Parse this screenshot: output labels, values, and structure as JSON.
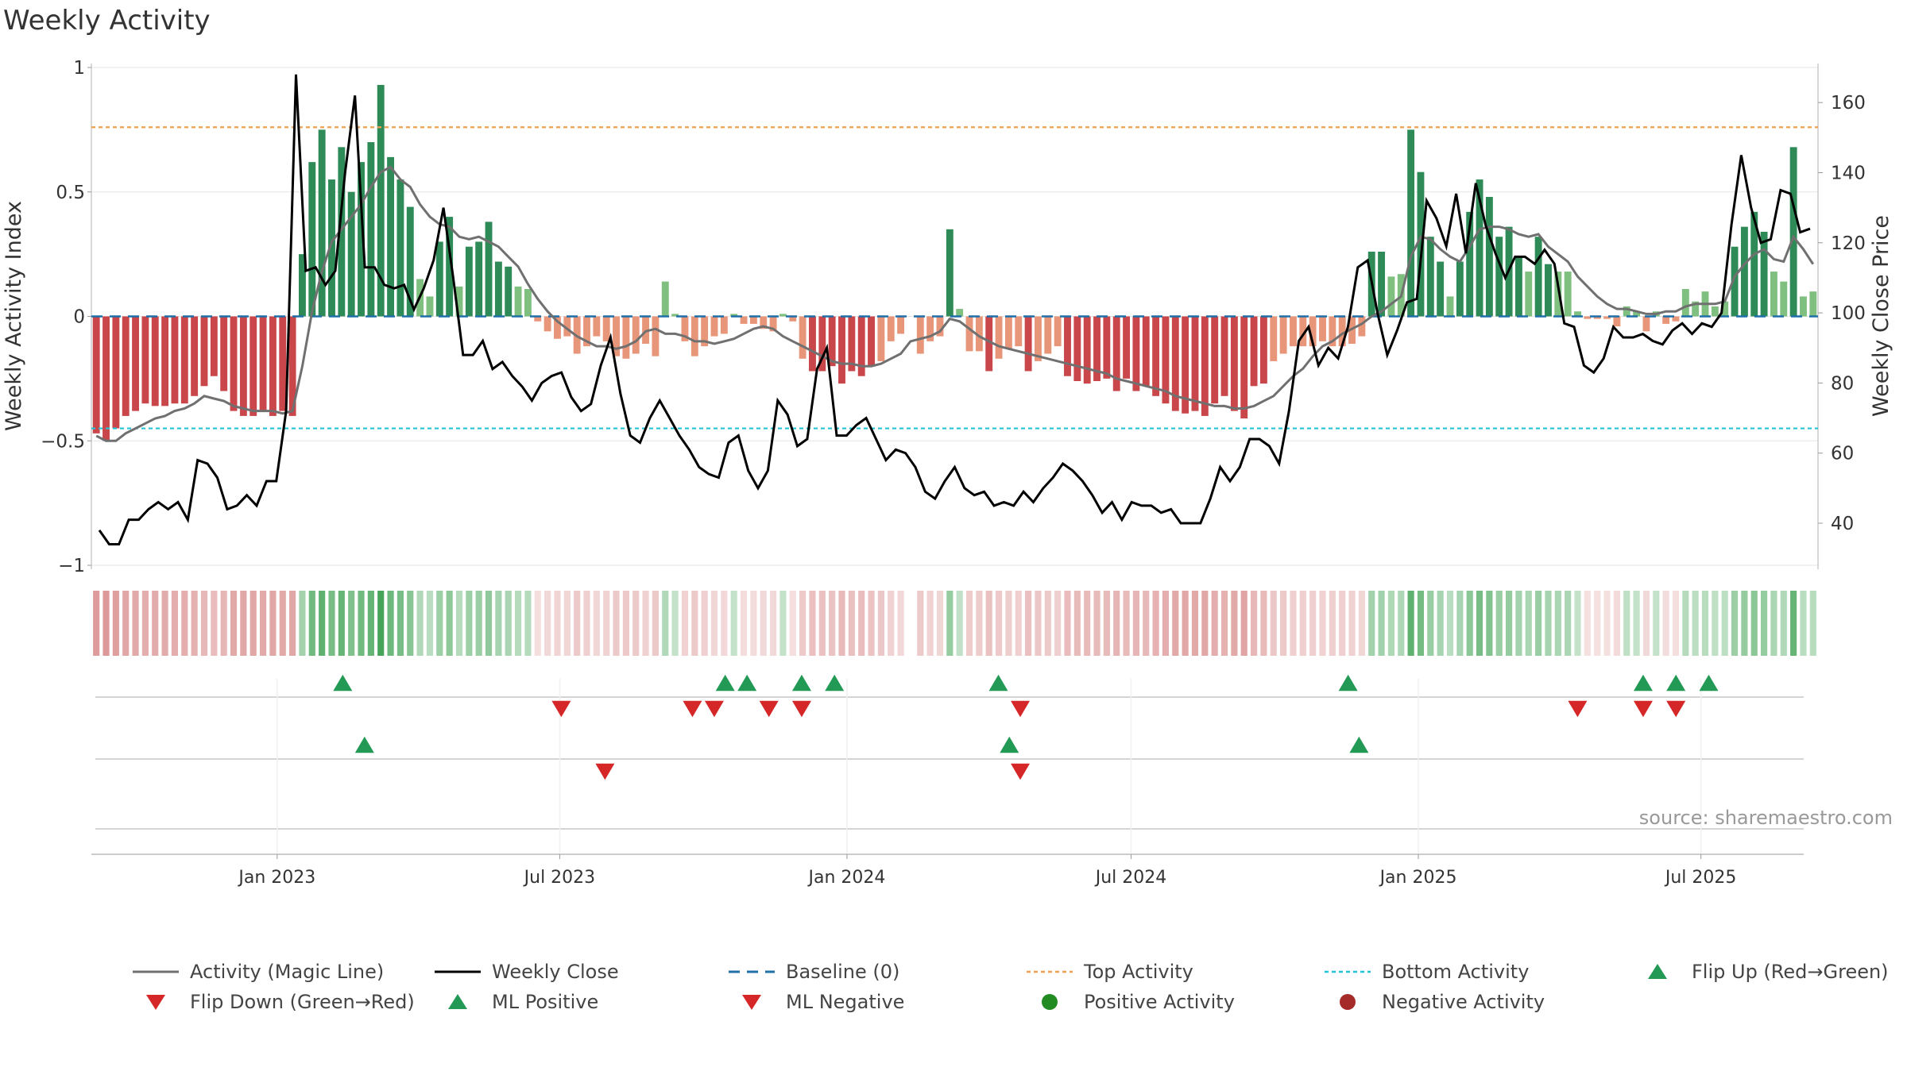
{
  "title": "Weekly Activity",
  "source_note": "source: sharemaestro.com",
  "colors": {
    "pos_dark": "#2e8b57",
    "pos_light": "#7fbf7f",
    "neg_dark": "#c9474a",
    "neg_light": "#e8967a",
    "magic_line": "#707070",
    "close_line": "#000000",
    "baseline": "#1f6fa8",
    "top_line": "#f0a050",
    "bottom_line": "#22c4d6",
    "up_marker": "#229954",
    "down_marker": "#d62728",
    "pos_dot": "#228b22",
    "neg_dot": "#a52a2a"
  },
  "legend": [
    {
      "label": "Activity (Magic Line)",
      "kind": "line",
      "color": "#707070"
    },
    {
      "label": "Weekly Close",
      "kind": "line",
      "color": "#000000"
    },
    {
      "label": "Baseline (0)",
      "kind": "dash",
      "color": "#1f6fa8"
    },
    {
      "label": "Top Activity",
      "kind": "dot-line",
      "color": "#f0a050"
    },
    {
      "label": "Bottom Activity",
      "kind": "dot-line",
      "color": "#22c4d6"
    },
    {
      "label": "Flip Up (Red→Green)",
      "kind": "tri-up",
      "color": "#229954"
    },
    {
      "label": "Flip Down (Green→Red)",
      "kind": "tri-down",
      "color": "#d62728"
    },
    {
      "label": "ML Positive",
      "kind": "tri-up",
      "color": "#229954"
    },
    {
      "label": "ML Negative",
      "kind": "tri-down",
      "color": "#d62728"
    },
    {
      "label": "Positive Activity",
      "kind": "circle",
      "color": "#228b22"
    },
    {
      "label": "Negative Activity",
      "kind": "circle",
      "color": "#a52a2a"
    }
  ],
  "chart_data": {
    "type": "bar",
    "title": "Weekly Activity",
    "ylabel": "Weekly Activity Index",
    "y2label": "Weekly Close Price",
    "ylim": [
      -1,
      1
    ],
    "y2lim": [
      28,
      170
    ],
    "yticks": [
      "1",
      "0.5",
      "0",
      "−0.5",
      "−1"
    ],
    "y2ticks": [
      "40",
      "60",
      "80",
      "100",
      "120",
      "140",
      "160"
    ],
    "x_start": "2022-09-04",
    "x_end": "2025-09-14",
    "xticks": [
      {
        "label": "Jan 2023",
        "date": "2023-01-01"
      },
      {
        "label": "Jul 2023",
        "date": "2023-07-01"
      },
      {
        "label": "Jan 2024",
        "date": "2024-01-01"
      },
      {
        "label": "Jul 2024",
        "date": "2024-07-01"
      },
      {
        "label": "Jan 2025",
        "date": "2025-01-01"
      },
      {
        "label": "Jul 2025",
        "date": "2025-07-01"
      }
    ],
    "top_activity": 0.76,
    "bottom_activity": -0.45,
    "baseline": 0,
    "activity_index": [
      -0.47,
      -0.5,
      -0.45,
      -0.4,
      -0.38,
      -0.35,
      -0.36,
      -0.36,
      -0.35,
      -0.35,
      -0.32,
      -0.28,
      -0.24,
      -0.3,
      -0.38,
      -0.4,
      -0.4,
      -0.38,
      -0.4,
      -0.38,
      -0.4,
      0.25,
      0.62,
      0.75,
      0.55,
      0.68,
      0.5,
      0.62,
      0.7,
      0.93,
      0.64,
      0.55,
      0.44,
      0.15,
      0.08,
      0.3,
      0.4,
      0.12,
      0.28,
      0.3,
      0.38,
      0.22,
      0.2,
      0.12,
      0.11,
      -0.02,
      -0.06,
      -0.09,
      -0.08,
      -0.15,
      -0.12,
      -0.08,
      -0.1,
      -0.16,
      -0.17,
      -0.15,
      -0.11,
      -0.16,
      0.14,
      0.01,
      -0.1,
      -0.16,
      -0.12,
      -0.08,
      -0.07,
      0.01,
      -0.03,
      -0.03,
      -0.05,
      -0.06,
      0.01,
      -0.02,
      -0.17,
      -0.22,
      -0.22,
      -0.2,
      -0.27,
      -0.22,
      -0.24,
      -0.2,
      -0.18,
      -0.1,
      -0.07,
      null,
      -0.15,
      -0.1,
      -0.08,
      0.35,
      0.03,
      -0.14,
      -0.14,
      -0.22,
      -0.17,
      -0.13,
      -0.12,
      -0.22,
      -0.18,
      -0.15,
      -0.12,
      -0.24,
      -0.26,
      -0.27,
      -0.26,
      -0.25,
      -0.3,
      -0.25,
      -0.3,
      -0.28,
      -0.32,
      -0.35,
      -0.38,
      -0.39,
      -0.38,
      -0.4,
      -0.35,
      -0.32,
      -0.38,
      -0.41,
      -0.28,
      -0.27,
      -0.18,
      -0.15,
      -0.12,
      -0.12,
      -0.12,
      -0.1,
      -0.12,
      -0.12,
      -0.11,
      -0.08,
      0.26,
      0.26,
      0.16,
      0.17,
      0.75,
      0.58,
      0.32,
      0.22,
      0.08,
      0.22,
      0.42,
      0.55,
      0.48,
      0.32,
      0.36,
      0.24,
      0.18,
      0.32,
      0.21,
      0.18,
      0.18,
      0.02,
      -0.01,
      -0.01,
      -0.01,
      -0.04,
      0.04,
      0.02,
      -0.06,
      0.02,
      -0.03,
      -0.02,
      0.11,
      0.06,
      0.1,
      0.04,
      0.06,
      0.28,
      0.36,
      0.42,
      0.34,
      0.18,
      0.14,
      0.68,
      0.08,
      0.1
    ],
    "magic_line": [
      -0.48,
      -0.5,
      -0.5,
      -0.47,
      -0.45,
      -0.43,
      -0.41,
      -0.4,
      -0.38,
      -0.37,
      -0.35,
      -0.32,
      -0.33,
      -0.34,
      -0.36,
      -0.37,
      -0.38,
      -0.38,
      -0.38,
      -0.39,
      -0.38,
      -0.2,
      0.02,
      0.18,
      0.3,
      0.35,
      0.4,
      0.45,
      0.52,
      0.58,
      0.6,
      0.55,
      0.52,
      0.45,
      0.4,
      0.37,
      0.36,
      0.32,
      0.31,
      0.32,
      0.3,
      0.28,
      0.24,
      0.2,
      0.13,
      0.07,
      0.02,
      -0.02,
      -0.05,
      -0.08,
      -0.1,
      -0.12,
      -0.12,
      -0.13,
      -0.12,
      -0.1,
      -0.06,
      -0.05,
      -0.07,
      -0.07,
      -0.08,
      -0.1,
      -0.1,
      -0.11,
      -0.1,
      -0.09,
      -0.07,
      -0.05,
      -0.04,
      -0.05,
      -0.08,
      -0.1,
      -0.12,
      -0.14,
      -0.16,
      -0.18,
      -0.19,
      -0.19,
      -0.2,
      -0.2,
      -0.19,
      -0.17,
      -0.15,
      -0.1,
      -0.09,
      -0.08,
      -0.06,
      -0.01,
      -0.02,
      -0.05,
      -0.08,
      -0.1,
      -0.12,
      -0.13,
      -0.14,
      -0.15,
      -0.16,
      -0.17,
      -0.18,
      -0.19,
      -0.2,
      -0.21,
      -0.22,
      -0.23,
      -0.25,
      -0.26,
      -0.27,
      -0.28,
      -0.29,
      -0.3,
      -0.32,
      -0.33,
      -0.34,
      -0.35,
      -0.36,
      -0.36,
      -0.37,
      -0.37,
      -0.36,
      -0.34,
      -0.32,
      -0.28,
      -0.24,
      -0.21,
      -0.16,
      -0.12,
      -0.1,
      -0.07,
      -0.05,
      -0.03,
      0.0,
      0.02,
      0.05,
      0.08,
      0.24,
      0.32,
      0.31,
      0.27,
      0.24,
      0.22,
      0.28,
      0.35,
      0.36,
      0.36,
      0.35,
      0.33,
      0.32,
      0.33,
      0.28,
      0.25,
      0.22,
      0.16,
      0.12,
      0.08,
      0.05,
      0.03,
      0.03,
      0.02,
      0.01,
      0.01,
      0.02,
      0.02,
      0.04,
      0.05,
      0.05,
      0.05,
      0.06,
      0.16,
      0.21,
      0.25,
      0.27,
      0.23,
      0.22,
      0.32,
      0.27,
      0.21
    ],
    "weekly_close": [
      38,
      34,
      34,
      41,
      41,
      44,
      46,
      44,
      46,
      41,
      58,
      57,
      53,
      44,
      45,
      48,
      45,
      52,
      52,
      72,
      168,
      112,
      113,
      108,
      112,
      140,
      162,
      113,
      113,
      108,
      107,
      108,
      101,
      107,
      115,
      130,
      110,
      88,
      88,
      92,
      84,
      86,
      82,
      79,
      75,
      80,
      82,
      83,
      76,
      72,
      74,
      85,
      93,
      77,
      65,
      63,
      70,
      75,
      70,
      65,
      61,
      56,
      54,
      53,
      63,
      65,
      55,
      50,
      55,
      75,
      71,
      62,
      64,
      84,
      90,
      65,
      65,
      68,
      70,
      64,
      58,
      61,
      60,
      56,
      49,
      47,
      52,
      56,
      50,
      48,
      49,
      45,
      46,
      45,
      49,
      46,
      50,
      53,
      57,
      55,
      52,
      48,
      43,
      46,
      41,
      46,
      45,
      45,
      43,
      44,
      40,
      40,
      40,
      47,
      56,
      52,
      56,
      64,
      64,
      62,
      57,
      72,
      92,
      96,
      85,
      90,
      87,
      96,
      113,
      115,
      100,
      88,
      95,
      103,
      104,
      132,
      127,
      119,
      134,
      117,
      137,
      125,
      117,
      110,
      116,
      116,
      114,
      118,
      114,
      97,
      96,
      85,
      83,
      87,
      96,
      93,
      93,
      94,
      92,
      91,
      95,
      97,
      94,
      97,
      96,
      100,
      125,
      145,
      130,
      120,
      121,
      135,
      134,
      123,
      124
    ],
    "flip_up": [
      "2023-02-12",
      "2023-10-15",
      "2023-10-29",
      "2023-12-03",
      "2023-12-24",
      "2024-04-07",
      "2024-11-17",
      "2025-05-25",
      "2025-06-15",
      "2025-07-06"
    ],
    "flip_down": [
      "2023-07-02",
      "2023-09-24",
      "2023-10-08",
      "2023-11-12",
      "2023-12-03",
      "2024-04-21",
      "2025-04-13",
      "2025-05-25",
      "2025-06-15"
    ],
    "ml_positive": [
      "2023-02-26",
      "2024-04-14",
      "2024-11-24"
    ],
    "ml_negative": [
      "2023-07-30",
      "2024-04-21"
    ]
  }
}
